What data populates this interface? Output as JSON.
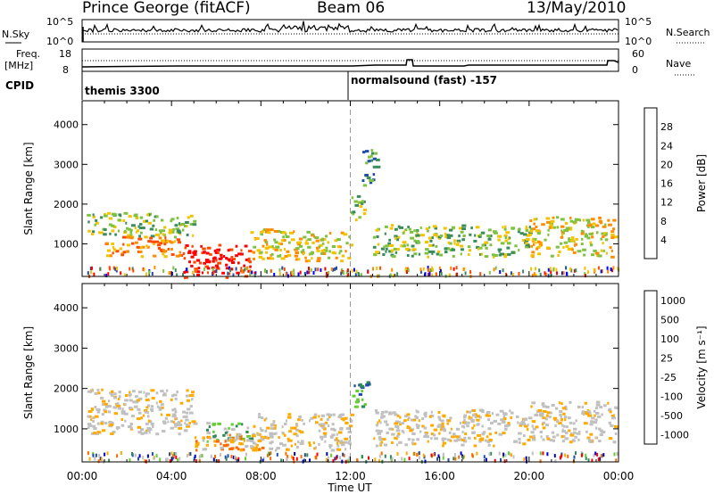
{
  "header": {
    "station": "Prince George (fitACF)",
    "beam": "Beam 06",
    "date": "13/May/2010"
  },
  "strip_noise": {
    "left_label": "N.Sky",
    "left_ticks": [
      "10^5",
      "10^0"
    ],
    "right_label": "N.Search",
    "right_ticks": [
      "10^5",
      "10^0"
    ]
  },
  "strip_freq": {
    "left_label_1": "Freq.",
    "left_label_2": "[MHz]",
    "left_ticks": [
      "18",
      "8"
    ],
    "right_label": "Nave",
    "right_ticks": [
      "60",
      "0"
    ]
  },
  "cpid": {
    "label": "CPID",
    "mode_1": "themis 3300",
    "mode_2": "normalsound (fast) -157"
  },
  "colors": {
    "power": [
      "#0000ff",
      "#1f4ea8",
      "#3a8c5a",
      "#7fc241",
      "#f2c300",
      "#ff8c00",
      "#ff4a00",
      "#ff0000"
    ],
    "velocity": [
      "#ff0000",
      "#ff6a00",
      "#ffaa00",
      "#c0c0c0",
      "#c0c0c0",
      "#66cc33",
      "#2e8b57",
      "#1f4ea8",
      "#0000cc"
    ]
  },
  "chart_data": [
    {
      "type": "heatmap",
      "name": "power",
      "xlabel": "Time UT",
      "ylabel": "Slant Range [km]",
      "x_ticks": [
        "00:00",
        "04:00",
        "08:00",
        "12:00",
        "16:00",
        "20:00",
        "00:00"
      ],
      "y_ticks": [
        1000,
        2000,
        3000,
        4000
      ],
      "xlim": [
        0,
        24
      ],
      "ylim": [
        180,
        4600
      ],
      "colorbar_label": "Power [dB]",
      "colorbar_ticks": [
        4,
        8,
        12,
        16,
        20,
        24,
        28
      ],
      "regions": [
        {
          "x": [
            0.2,
            5.0
          ],
          "y": [
            1200,
            1800
          ],
          "level": 3
        },
        {
          "x": [
            1.0,
            4.5
          ],
          "y": [
            700,
            1200
          ],
          "level": 5
        },
        {
          "x": [
            4.5,
            7.5
          ],
          "y": [
            180,
            1000
          ],
          "level": 7
        },
        {
          "x": [
            7.5,
            12.0
          ],
          "y": [
            600,
            1400
          ],
          "level": 4
        },
        {
          "x": [
            12.0,
            12.6
          ],
          "y": [
            1600,
            2300
          ],
          "level": 3
        },
        {
          "x": [
            12.5,
            13.2
          ],
          "y": [
            2500,
            3400
          ],
          "level": 2
        },
        {
          "x": [
            13.0,
            20.0
          ],
          "y": [
            700,
            1500
          ],
          "level": 3
        },
        {
          "x": [
            20.0,
            23.9
          ],
          "y": [
            700,
            1700
          ],
          "level": 4
        }
      ]
    },
    {
      "type": "heatmap",
      "name": "velocity",
      "xlabel": "Time UT",
      "ylabel": "Slant Range [km]",
      "x_ticks": [
        "00:00",
        "04:00",
        "08:00",
        "12:00",
        "16:00",
        "20:00",
        "00:00"
      ],
      "y_ticks": [
        1000,
        2000,
        3000,
        4000
      ],
      "xlim": [
        0,
        24
      ],
      "ylim": [
        180,
        4600
      ],
      "colorbar_label": "Velocity [m s⁻¹]",
      "colorbar_ticks": [
        -1000,
        -500,
        -100,
        -25,
        25,
        100,
        500,
        1000
      ],
      "regions": [
        {
          "x": [
            0.2,
            5.0
          ],
          "y": [
            900,
            2000
          ],
          "level": 3
        },
        {
          "x": [
            5.5,
            7.5
          ],
          "y": [
            700,
            1200
          ],
          "level": 5
        },
        {
          "x": [
            5.0,
            8.5
          ],
          "y": [
            500,
            900
          ],
          "level": 2
        },
        {
          "x": [
            7.5,
            12.0
          ],
          "y": [
            500,
            1400
          ],
          "level": 3
        },
        {
          "x": [
            12.0,
            12.8
          ],
          "y": [
            1500,
            2200
          ],
          "level": 6
        },
        {
          "x": [
            13.0,
            20.0
          ],
          "y": [
            600,
            1500
          ],
          "level": 3
        },
        {
          "x": [
            20.0,
            23.9
          ],
          "y": [
            700,
            1700
          ],
          "level": 3
        }
      ]
    }
  ]
}
